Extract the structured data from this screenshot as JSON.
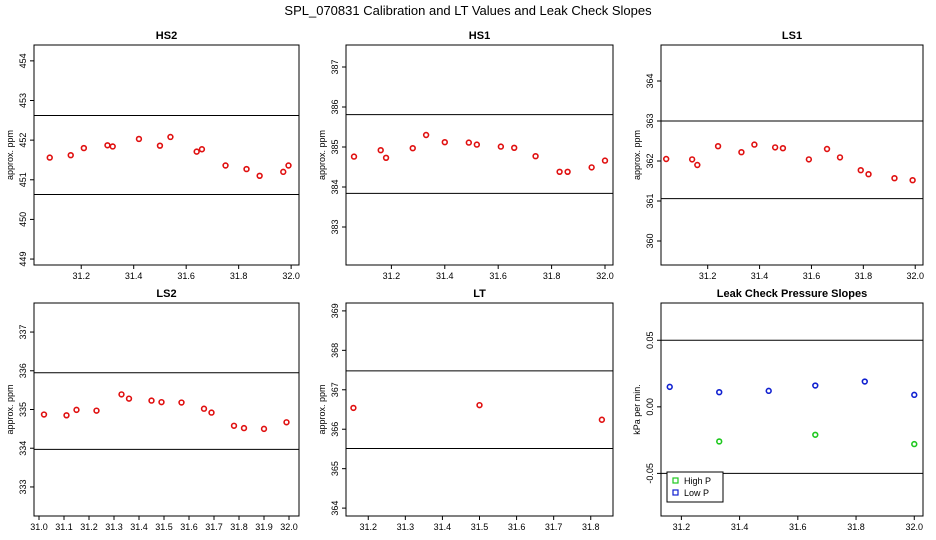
{
  "title": "SPL_070831  Calibration and LT Values and Leak Check Slopes",
  "chart_data": [
    {
      "type": "scatter",
      "title": "HS2",
      "ylabel": "approx. ppm",
      "xlim": [
        31.02,
        32.03
      ],
      "ylim": [
        448.85,
        454.4
      ],
      "xticks": [
        "31.2",
        "31.4",
        "31.6",
        "31.8",
        "32.0"
      ],
      "yticks": [
        "449",
        "450",
        "451",
        "452",
        "453",
        "454"
      ],
      "hlines": [
        452.62,
        450.63
      ],
      "series": [
        {
          "color": "#e01010",
          "x": [
            31.08,
            31.16,
            31.21,
            31.3,
            31.32,
            31.42,
            31.5,
            31.54,
            31.64,
            31.66,
            31.75,
            31.83,
            31.88,
            31.97,
            31.99
          ],
          "y": [
            451.56,
            451.62,
            451.8,
            451.87,
            451.84,
            452.03,
            451.86,
            452.08,
            451.71,
            451.77,
            451.36,
            451.27,
            451.1,
            451.2,
            451.36
          ]
        }
      ]
    },
    {
      "type": "scatter",
      "title": "HS1",
      "ylabel": "approx. ppm",
      "xlim": [
        31.03,
        32.03
      ],
      "ylim": [
        382.05,
        387.55
      ],
      "xticks": [
        "31.2",
        "31.4",
        "31.6",
        "31.8",
        "32.0"
      ],
      "yticks": [
        "383",
        "384",
        "385",
        "386",
        "387"
      ],
      "hlines": [
        385.81,
        383.84
      ],
      "series": [
        {
          "color": "#e01010",
          "x": [
            31.06,
            31.16,
            31.18,
            31.28,
            31.33,
            31.4,
            31.49,
            31.52,
            31.61,
            31.66,
            31.74,
            31.83,
            31.86,
            31.95,
            32.0
          ],
          "y": [
            384.76,
            384.92,
            384.73,
            384.97,
            385.3,
            385.12,
            385.11,
            385.06,
            385.01,
            384.98,
            384.77,
            384.38,
            384.38,
            384.49,
            384.66
          ]
        }
      ]
    },
    {
      "type": "scatter",
      "title": "LS1",
      "ylabel": "approx. ppm",
      "xlim": [
        31.02,
        32.03
      ],
      "ylim": [
        359.4,
        364.9
      ],
      "xticks": [
        "31.2",
        "31.4",
        "31.6",
        "31.8",
        "32.0"
      ],
      "yticks": [
        "360",
        "361",
        "362",
        "363",
        "364"
      ],
      "hlines": [
        363.0,
        361.06
      ],
      "series": [
        {
          "color": "#e01010",
          "x": [
            31.04,
            31.14,
            31.16,
            31.24,
            31.33,
            31.38,
            31.46,
            31.49,
            31.59,
            31.66,
            31.71,
            31.79,
            31.82,
            31.92,
            31.99
          ],
          "y": [
            362.05,
            362.04,
            361.9,
            362.37,
            362.22,
            362.41,
            362.34,
            362.32,
            362.04,
            362.3,
            362.09,
            361.77,
            361.67,
            361.57,
            361.52
          ]
        }
      ]
    },
    {
      "type": "scatter",
      "title": "LS2",
      "ylabel": "approx. ppm",
      "xlim": [
        30.98,
        32.04
      ],
      "ylim": [
        332.25,
        337.75
      ],
      "xticks": [
        "31.0",
        "31.1",
        "31.2",
        "31.3",
        "31.4",
        "31.5",
        "31.6",
        "31.7",
        "31.8",
        "31.9",
        "32.0"
      ],
      "yticks": [
        "333",
        "334",
        "335",
        "336",
        "337"
      ],
      "hlines": [
        335.95,
        333.97
      ],
      "series": [
        {
          "color": "#e01010",
          "x": [
            31.02,
            31.11,
            31.15,
            31.23,
            31.33,
            31.36,
            31.45,
            31.49,
            31.57,
            31.66,
            31.69,
            31.78,
            31.82,
            31.9,
            31.99
          ],
          "y": [
            334.87,
            334.85,
            334.99,
            334.97,
            335.39,
            335.28,
            335.23,
            335.19,
            335.18,
            335.02,
            334.92,
            334.58,
            334.52,
            334.5,
            334.67
          ]
        }
      ]
    },
    {
      "type": "scatter",
      "title": "LT",
      "ylabel": "approx. ppm",
      "xlim": [
        31.14,
        31.86
      ],
      "ylim": [
        363.8,
        369.2
      ],
      "xticks": [
        "31.2",
        "31.3",
        "31.4",
        "31.5",
        "31.6",
        "31.7",
        "31.8"
      ],
      "yticks": [
        "364",
        "365",
        "366",
        "367",
        "368",
        "369"
      ],
      "hlines": [
        367.48,
        365.51
      ],
      "series": [
        {
          "color": "#e01010",
          "x": [
            31.16,
            31.5,
            31.83
          ],
          "y": [
            366.54,
            366.61,
            366.24
          ]
        }
      ]
    },
    {
      "type": "scatter",
      "title": "Leak Check Pressure Slopes",
      "ylabel": "kPa per min.",
      "xlim": [
        31.13,
        32.03
      ],
      "ylim": [
        -0.082,
        0.078
      ],
      "xticks": [
        "31.2",
        "31.4",
        "31.6",
        "31.8",
        "32.0"
      ],
      "yticks": [
        "-0.05",
        "0.00",
        "0.05"
      ],
      "hlines": [
        0.05,
        -0.05
      ],
      "legend": {
        "position": "bottom-left"
      },
      "series": [
        {
          "name": "High P",
          "color": "#1ec81e",
          "x": [
            31.33,
            31.66,
            32.0
          ],
          "y": [
            -0.026,
            -0.021,
            -0.028
          ]
        },
        {
          "name": "Low P",
          "color": "#1020d0",
          "x": [
            31.16,
            31.33,
            31.5,
            31.66,
            31.83,
            32.0
          ],
          "y": [
            0.015,
            0.011,
            0.012,
            0.016,
            0.019,
            0.009
          ]
        }
      ]
    }
  ]
}
